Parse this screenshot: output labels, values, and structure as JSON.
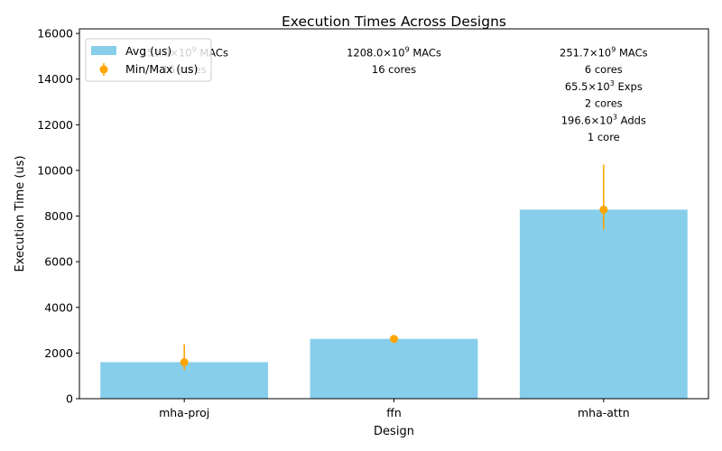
{
  "chart_data": {
    "type": "bar",
    "title": "Execution Times Across Designs",
    "xlabel": "Design",
    "ylabel": "Execution Time (us)",
    "ylim": [
      0,
      16200
    ],
    "yticks": [
      0,
      2000,
      4000,
      6000,
      8000,
      10000,
      12000,
      14000,
      16000
    ],
    "categories": [
      "mha-proj",
      "ffn",
      "mha-attn"
    ],
    "series": [
      {
        "name": "Avg (us)",
        "type": "bar",
        "color": "#87ceeb",
        "values": [
          1600,
          2620,
          8280
        ]
      },
      {
        "name": "Min/Max (us)",
        "type": "errorbar",
        "color": "#ffa500",
        "values": [
          1600,
          2620,
          8280
        ],
        "min": [
          1250,
          2560,
          7400
        ],
        "max": [
          2380,
          2680,
          10250
        ]
      }
    ],
    "legend_position": "top-left",
    "grid": false,
    "annotations": [
      {
        "category": "mha-proj",
        "lines": [
          {
            "base": "151.0×10",
            "sup": "9",
            "rest": " MACs"
          },
          {
            "base": "16 cores",
            "sup": "",
            "rest": ""
          }
        ]
      },
      {
        "category": "ffn",
        "lines": [
          {
            "base": "1208.0×10",
            "sup": "9",
            "rest": " MACs"
          },
          {
            "base": "16 cores",
            "sup": "",
            "rest": ""
          }
        ]
      },
      {
        "category": "mha-attn",
        "lines": [
          {
            "base": "251.7×10",
            "sup": "9",
            "rest": " MACs"
          },
          {
            "base": "6 cores",
            "sup": "",
            "rest": ""
          },
          {
            "base": "65.5×10",
            "sup": "3",
            "rest": " Exps"
          },
          {
            "base": "2 cores",
            "sup": "",
            "rest": ""
          },
          {
            "base": "196.6×10",
            "sup": "3",
            "rest": " Adds"
          },
          {
            "base": "1 core",
            "sup": "",
            "rest": ""
          }
        ]
      }
    ]
  }
}
